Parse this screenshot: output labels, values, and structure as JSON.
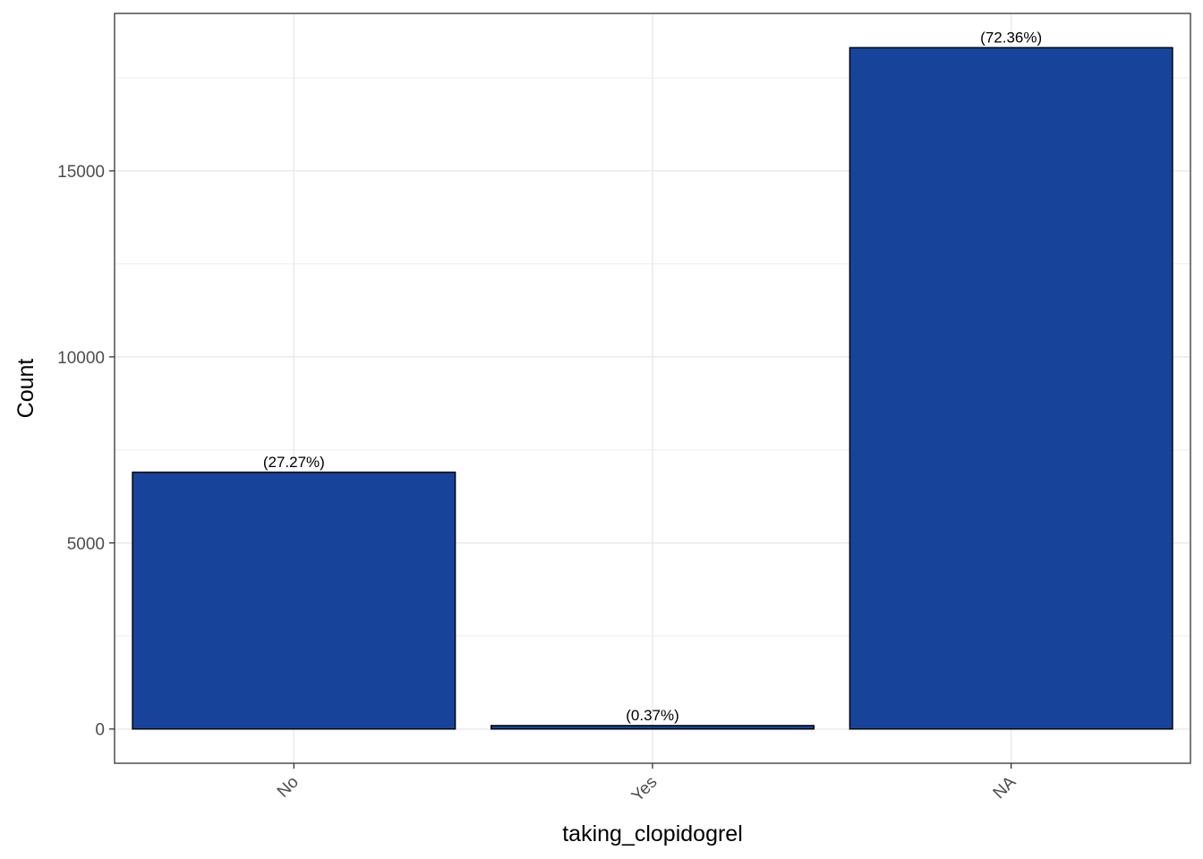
{
  "chart_data": {
    "type": "bar",
    "categories": [
      "No",
      "Yes",
      "NA"
    ],
    "values": [
      6900,
      93,
      18310
    ],
    "labels": [
      "(27.27%)",
      "(0.37%)",
      "(72.36%)"
    ],
    "xlabel": "taking_clopidogrel",
    "ylabel": "Count",
    "ylim": [
      -920,
      19230
    ],
    "yticks": [
      0,
      5000,
      10000,
      15000
    ],
    "ytick_labels": [
      "0",
      "5000",
      "10000",
      "15000"
    ],
    "grid": true,
    "bar_color": "#17449A",
    "bar_edge_color": "#000000"
  }
}
